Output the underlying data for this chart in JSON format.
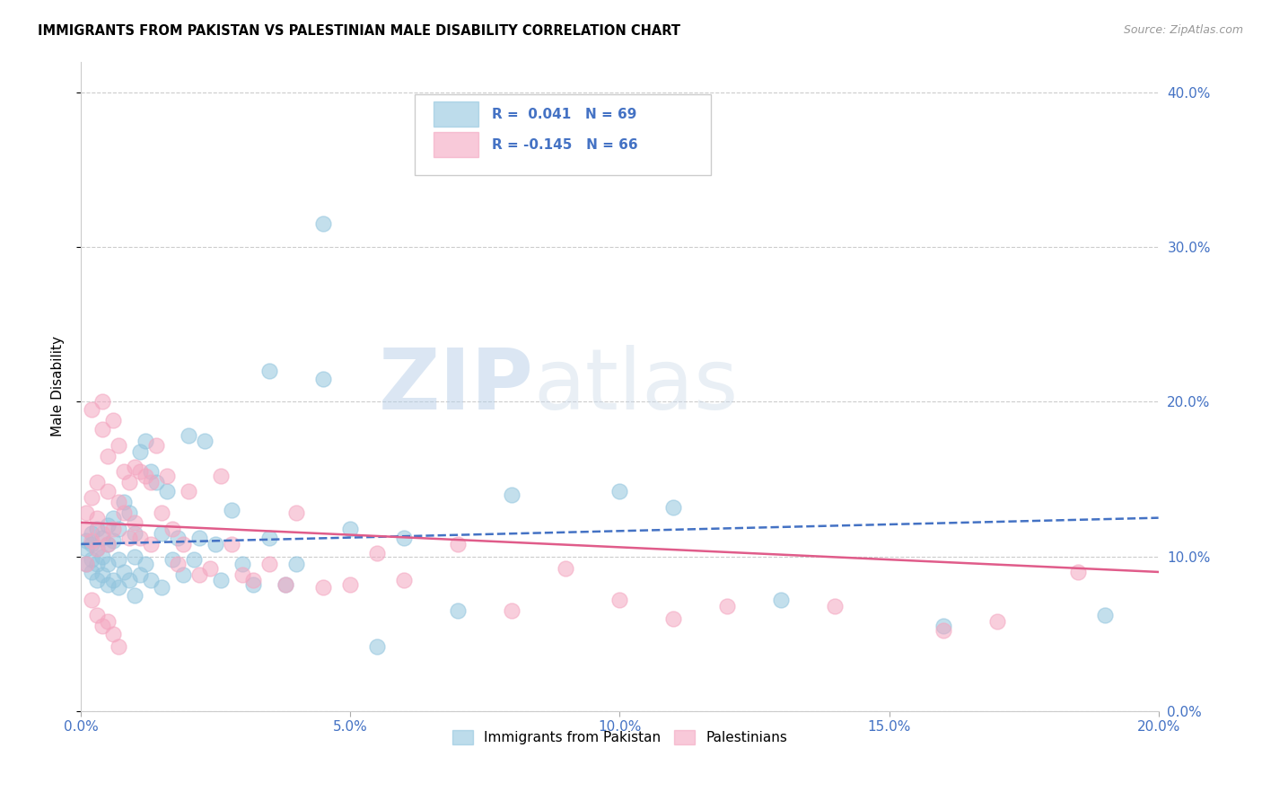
{
  "title": "IMMIGRANTS FROM PAKISTAN VS PALESTINIAN MALE DISABILITY CORRELATION CHART",
  "source": "Source: ZipAtlas.com",
  "ylabel": "Male Disability",
  "xmin": 0.0,
  "xmax": 0.2,
  "ymin": 0.0,
  "ymax": 0.42,
  "yticks": [
    0.0,
    0.1,
    0.2,
    0.3,
    0.4
  ],
  "xticks": [
    0.0,
    0.05,
    0.1,
    0.15,
    0.2
  ],
  "legend_labels": [
    "Immigrants from Pakistan",
    "Palestinians"
  ],
  "blue_R": "0.041",
  "blue_N": "69",
  "pink_R": "-0.145",
  "pink_N": "66",
  "blue_color": "#92c5de",
  "pink_color": "#f4a6c0",
  "blue_line_color": "#4472c4",
  "pink_line_color": "#e05c8a",
  "watermark_zip": "ZIP",
  "watermark_atlas": "atlas",
  "blue_scatter_x": [
    0.001,
    0.001,
    0.001,
    0.002,
    0.002,
    0.002,
    0.002,
    0.003,
    0.003,
    0.003,
    0.003,
    0.004,
    0.004,
    0.004,
    0.005,
    0.005,
    0.005,
    0.005,
    0.006,
    0.006,
    0.006,
    0.007,
    0.007,
    0.007,
    0.008,
    0.008,
    0.009,
    0.009,
    0.01,
    0.01,
    0.01,
    0.011,
    0.011,
    0.012,
    0.012,
    0.013,
    0.013,
    0.014,
    0.015,
    0.015,
    0.016,
    0.017,
    0.018,
    0.019,
    0.02,
    0.021,
    0.022,
    0.023,
    0.025,
    0.026,
    0.028,
    0.03,
    0.032,
    0.035,
    0.038,
    0.04,
    0.045,
    0.05,
    0.055,
    0.06,
    0.07,
    0.08,
    0.1,
    0.11,
    0.13,
    0.16,
    0.19,
    0.045,
    0.035
  ],
  "blue_scatter_y": [
    0.11,
    0.105,
    0.095,
    0.115,
    0.108,
    0.098,
    0.09,
    0.118,
    0.105,
    0.095,
    0.085,
    0.112,
    0.1,
    0.088,
    0.12,
    0.108,
    0.095,
    0.082,
    0.125,
    0.11,
    0.085,
    0.118,
    0.098,
    0.08,
    0.135,
    0.09,
    0.128,
    0.085,
    0.115,
    0.1,
    0.075,
    0.168,
    0.088,
    0.175,
    0.095,
    0.155,
    0.085,
    0.148,
    0.115,
    0.08,
    0.142,
    0.098,
    0.112,
    0.088,
    0.178,
    0.098,
    0.112,
    0.175,
    0.108,
    0.085,
    0.13,
    0.095,
    0.082,
    0.112,
    0.082,
    0.095,
    0.215,
    0.118,
    0.042,
    0.112,
    0.065,
    0.14,
    0.142,
    0.132,
    0.072,
    0.055,
    0.062,
    0.315,
    0.22
  ],
  "pink_scatter_x": [
    0.001,
    0.001,
    0.001,
    0.002,
    0.002,
    0.002,
    0.003,
    0.003,
    0.003,
    0.004,
    0.004,
    0.004,
    0.005,
    0.005,
    0.005,
    0.006,
    0.006,
    0.007,
    0.007,
    0.008,
    0.008,
    0.009,
    0.009,
    0.01,
    0.01,
    0.011,
    0.011,
    0.012,
    0.013,
    0.013,
    0.014,
    0.015,
    0.016,
    0.017,
    0.018,
    0.019,
    0.02,
    0.022,
    0.024,
    0.026,
    0.028,
    0.03,
    0.032,
    0.035,
    0.038,
    0.04,
    0.045,
    0.05,
    0.055,
    0.06,
    0.07,
    0.08,
    0.09,
    0.1,
    0.11,
    0.12,
    0.14,
    0.16,
    0.17,
    0.185,
    0.003,
    0.004,
    0.005,
    0.002,
    0.006,
    0.007
  ],
  "pink_scatter_y": [
    0.128,
    0.118,
    0.095,
    0.195,
    0.138,
    0.11,
    0.148,
    0.125,
    0.105,
    0.2,
    0.182,
    0.115,
    0.165,
    0.142,
    0.108,
    0.188,
    0.118,
    0.172,
    0.135,
    0.155,
    0.128,
    0.148,
    0.112,
    0.158,
    0.122,
    0.155,
    0.112,
    0.152,
    0.148,
    0.108,
    0.172,
    0.128,
    0.152,
    0.118,
    0.095,
    0.108,
    0.142,
    0.088,
    0.092,
    0.152,
    0.108,
    0.088,
    0.085,
    0.095,
    0.082,
    0.128,
    0.08,
    0.082,
    0.102,
    0.085,
    0.108,
    0.065,
    0.092,
    0.072,
    0.06,
    0.068,
    0.068,
    0.052,
    0.058,
    0.09,
    0.062,
    0.055,
    0.058,
    0.072,
    0.05,
    0.042
  ],
  "blue_line_x": [
    0.0,
    0.2
  ],
  "blue_line_y": [
    0.108,
    0.125
  ],
  "pink_line_x": [
    0.0,
    0.2
  ],
  "pink_line_y": [
    0.122,
    0.09
  ]
}
